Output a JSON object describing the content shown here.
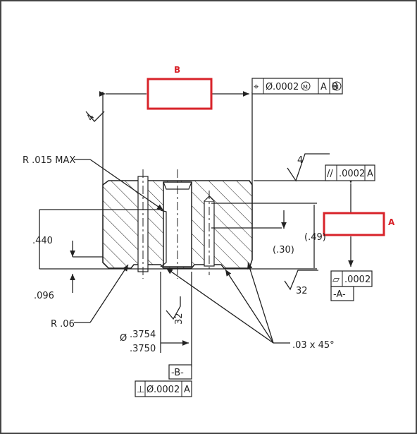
{
  "labels": {
    "callout_b": "B",
    "callout_a": "A",
    "r015": "R .015 MAX",
    "dim440": ".440",
    "dim096": ".096",
    "r06": "R .06",
    "dia_top": ".3754",
    "dia_bot": ".3750",
    "dia_sym": "Ø",
    "dim49": "(.49)",
    "dim30": "(.30)",
    "chamfer": ".03  x  45°",
    "finish_top": "4",
    "finish_left": "4",
    "finish_32_bottom": "32",
    "finish_32_bore": "32"
  },
  "fcf": {
    "position": {
      "symbol": "⌖",
      "dia": "Ø",
      "tol": ".0002",
      "mod1": "M",
      "datum1": "A",
      "datum2": "B",
      "mod2": "M"
    },
    "parallel": {
      "symbol": "//",
      "tol": ".0002",
      "datum": "A"
    },
    "flatness": {
      "symbol": "▱",
      "tol": ".0002"
    },
    "perp": {
      "symbol": "⊥",
      "dia": "Ø",
      "tol": ".0002",
      "datum": "A"
    }
  },
  "datums": {
    "a": "-A-",
    "b": "-B-"
  },
  "colors": {
    "line": "#222222",
    "highlight": "#d8232a",
    "border": "#444444"
  }
}
